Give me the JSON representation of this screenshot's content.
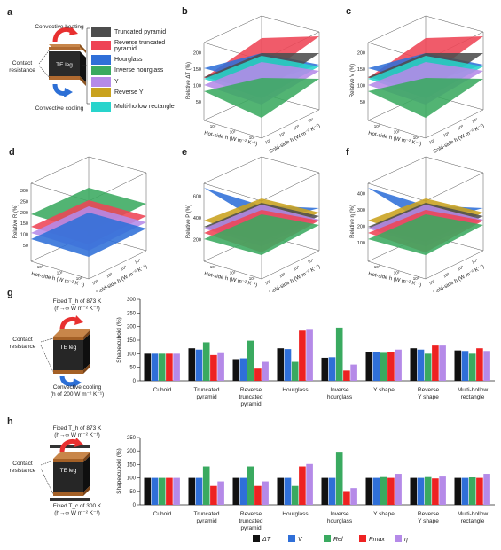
{
  "panels": {
    "a": "a",
    "b": "b",
    "c": "c",
    "d": "d",
    "e": "e",
    "f": "f",
    "g": "g",
    "h": "h"
  },
  "schematic_a": {
    "heating": "Convective heating",
    "cooling": "Convective cooling",
    "contact": "Contact\nresistance",
    "leg": "TE leg"
  },
  "legend_a": [
    {
      "label": "Truncated pyramid",
      "color": "#4d4d4d"
    },
    {
      "label": "Reverse truncated pyramid",
      "color": "#ee4455"
    },
    {
      "label": "Hourglass",
      "color": "#2f6fd8"
    },
    {
      "label": "Inverse hourglass",
      "color": "#3aaa60"
    },
    {
      "label": "Y",
      "color": "#b58ae8"
    },
    {
      "label": "Reverse Y",
      "color": "#c9a21e"
    },
    {
      "label": "Multi-hollow rectangle",
      "color": "#28d4cc"
    }
  ],
  "surface_panels": [
    {
      "id": "b",
      "zlabel": "Relative ΔT (%)",
      "zticks": [
        "50",
        "100",
        "150",
        "200"
      ]
    },
    {
      "id": "c",
      "zlabel": "Relative V (%)",
      "zticks": [
        "50",
        "100",
        "150",
        "200"
      ]
    },
    {
      "id": "d",
      "zlabel": "Relative R (%)",
      "zticks": [
        "50",
        "100",
        "150",
        "200",
        "250",
        "300"
      ]
    },
    {
      "id": "e",
      "zlabel": "Relative P (%)",
      "zticks": [
        "200",
        "400",
        "600"
      ]
    },
    {
      "id": "f",
      "zlabel": "Relative η (%)",
      "zticks": [
        "100",
        "200",
        "300",
        "400"
      ]
    }
  ],
  "surface_axes": {
    "hot": "Hot-side h (W m⁻² K⁻¹)",
    "cold": "Cold-side h (W m⁻² K⁻¹)",
    "tick": "10³",
    "tick2": "10⁴"
  },
  "schematic_g": {
    "top": "Fixed T_h of 873 K",
    "top2": "(h→∞ W m⁻² K⁻¹)",
    "contact": "Contact\nresistance",
    "leg": "TE leg",
    "bottom": "Convective cooling",
    "bottom2": "(h of 200 W m⁻² K⁻¹)"
  },
  "schematic_h": {
    "top": "Fixed T_h of 873 K",
    "top2": "(h→∞ W m⁻² K⁻¹)",
    "contact": "Contact\nresistance",
    "leg": "TE leg",
    "bottom": "Fixed T_c of 300 K",
    "bottom2": "(h→∞ W m⁻² K⁻¹)"
  },
  "bar_legend": [
    {
      "label": "ΔT",
      "color": "#111111"
    },
    {
      "label": "V",
      "color": "#2f6fd8"
    },
    {
      "label": "R_el",
      "color": "#3aaa60"
    },
    {
      "label": "P_max",
      "color": "#ee2222"
    },
    {
      "label": "η",
      "color": "#b58ae8"
    }
  ],
  "chart_data": [
    {
      "id": "g",
      "type": "bar",
      "ylabel": "Shape/cuboid (%)",
      "ylim": [
        0,
        300
      ],
      "yticks": [
        0,
        50,
        100,
        150,
        200,
        250,
        300
      ],
      "categories": [
        "Cuboid",
        "Truncated\npyramid",
        "Reverse\ntruncated\npyramid",
        "Hourglass",
        "Inverse\nhourglass",
        "Y shape",
        "Reverse\nY shape",
        "Multi-hollow\nrectangle"
      ],
      "series": [
        {
          "name": "ΔT",
          "values": [
            100,
            120,
            80,
            120,
            85,
            105,
            120,
            112
          ]
        },
        {
          "name": "V",
          "values": [
            100,
            115,
            83,
            117,
            87,
            105,
            115,
            110
          ]
        },
        {
          "name": "R_el",
          "values": [
            100,
            142,
            148,
            70,
            196,
            103,
            100,
            100
          ]
        },
        {
          "name": "P_max",
          "values": [
            100,
            95,
            45,
            185,
            38,
            105,
            130,
            120
          ]
        },
        {
          "name": "η",
          "values": [
            100,
            102,
            70,
            188,
            60,
            115,
            130,
            110
          ]
        }
      ]
    },
    {
      "id": "h",
      "type": "bar",
      "ylabel": "Shape/cuboid (%)",
      "ylim": [
        0,
        250
      ],
      "yticks": [
        0,
        50,
        100,
        150,
        200,
        250
      ],
      "categories": [
        "Cuboid",
        "Truncated\npyramid",
        "Reverse\ntruncated\npyramid",
        "Hourglass",
        "Inverse\nhourglass",
        "Y shape",
        "Reverse\nY shape",
        "Multi-hollow\nrectangle"
      ],
      "series": [
        {
          "name": "ΔT",
          "values": [
            100,
            100,
            100,
            100,
            100,
            100,
            100,
            100
          ]
        },
        {
          "name": "V",
          "values": [
            100,
            100,
            100,
            100,
            100,
            100,
            100,
            100
          ]
        },
        {
          "name": "R_el",
          "values": [
            100,
            143,
            143,
            70,
            197,
            103,
            103,
            102
          ]
        },
        {
          "name": "P_max",
          "values": [
            100,
            70,
            70,
            143,
            51,
            100,
            98,
            100
          ]
        },
        {
          "name": "η",
          "values": [
            100,
            87,
            87,
            152,
            62,
            115,
            105,
            115
          ]
        }
      ]
    }
  ]
}
